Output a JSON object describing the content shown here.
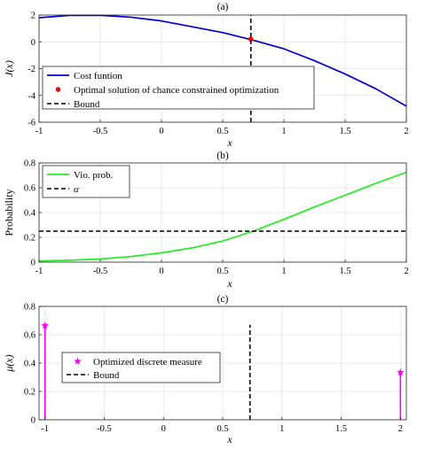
{
  "chart_data": [
    {
      "type": "line",
      "panel_label": "(a)",
      "xlabel": "x",
      "ylabel": "J(x)",
      "xlim": [
        -1,
        2
      ],
      "ylim": [
        -6,
        2
      ],
      "xticks": [
        -1,
        -0.5,
        0,
        0.5,
        1,
        1.5,
        2
      ],
      "yticks": [
        -6,
        -4,
        -2,
        0,
        2
      ],
      "xtick_labels": [
        "-1",
        "-0.5",
        "0",
        "0.5",
        "1",
        "1.5",
        "2"
      ],
      "ytick_labels": [
        "-6",
        "-4",
        "-2",
        "0",
        "2"
      ],
      "grid": true,
      "legend_position": "bottom-left",
      "series": [
        {
          "name": "Cost funtion",
          "kind": "line",
          "color": "#0000cc",
          "x": [
            -1,
            -0.75,
            -0.5,
            -0.25,
            0,
            0.25,
            0.5,
            0.75,
            1,
            1.25,
            1.5,
            1.75,
            2
          ],
          "y": [
            1.8,
            1.97,
            1.98,
            1.84,
            1.56,
            1.13,
            0.69,
            0.12,
            -0.52,
            -1.41,
            -2.4,
            -3.5,
            -4.8
          ]
        },
        {
          "name": "Optimal solution of chance constrained optimization",
          "kind": "point",
          "color": "#ff0000",
          "x": [
            0.73
          ],
          "y": [
            0.2
          ]
        },
        {
          "name": "Bound",
          "kind": "vline",
          "color": "#000000",
          "x": [
            0.73,
            0.73
          ],
          "y": [
            -6,
            2
          ]
        }
      ]
    },
    {
      "type": "line",
      "panel_label": "(b)",
      "xlabel": "x",
      "ylabel": "Probability",
      "xlim": [
        -1,
        2
      ],
      "ylim": [
        0,
        0.8
      ],
      "xticks": [
        -1,
        -0.5,
        0,
        0.5,
        1,
        1.5,
        2
      ],
      "yticks": [
        0,
        0.2,
        0.4,
        0.6,
        0.8
      ],
      "xtick_labels": [
        "-1",
        "-0.5",
        "0",
        "0.5",
        "1",
        "1.5",
        "2"
      ],
      "ytick_labels": [
        "0",
        "0.2",
        "0.4",
        "0.6",
        "0.8"
      ],
      "grid": true,
      "legend_position": "top-left",
      "series": [
        {
          "name": "Vio. prob.",
          "kind": "line",
          "color": "#22ee22",
          "x": [
            -1,
            -0.75,
            -0.5,
            -0.25,
            0,
            0.25,
            0.5,
            0.75,
            1,
            1.25,
            1.5,
            1.75,
            2
          ],
          "y": [
            0.01,
            0.015,
            0.025,
            0.045,
            0.075,
            0.115,
            0.17,
            0.25,
            0.345,
            0.445,
            0.54,
            0.635,
            0.725
          ]
        },
        {
          "name": "α",
          "kind": "hline",
          "color": "#000000",
          "x": [
            -1,
            2
          ],
          "y": [
            0.25,
            0.25
          ]
        }
      ]
    },
    {
      "type": "stem",
      "panel_label": "(c)",
      "xlabel": "x",
      "ylabel": "μ(x)",
      "xlim": [
        -1.05,
        2.05
      ],
      "ylim": [
        0,
        0.8
      ],
      "xticks": [
        -1,
        -0.5,
        0,
        0.5,
        1,
        1.5,
        2
      ],
      "yticks": [
        0,
        0.2,
        0.4,
        0.6,
        0.8
      ],
      "xtick_labels": [
        "-1",
        "-0.5",
        "0",
        "0.5",
        "1",
        "1.5",
        "2"
      ],
      "ytick_labels": [
        "0",
        "0.2",
        "0.4",
        "0.6",
        "0.8"
      ],
      "grid": true,
      "legend_position": "center-left",
      "series": [
        {
          "name": "Optimized discrete measure",
          "kind": "stem",
          "color": "#ff00ff",
          "x": [
            -1,
            2
          ],
          "y": [
            0.665,
            0.335
          ]
        },
        {
          "name": "Bound",
          "kind": "vline",
          "color": "#000000",
          "x": [
            0.73,
            0.73
          ],
          "y": [
            0,
            0.67
          ]
        }
      ]
    }
  ]
}
